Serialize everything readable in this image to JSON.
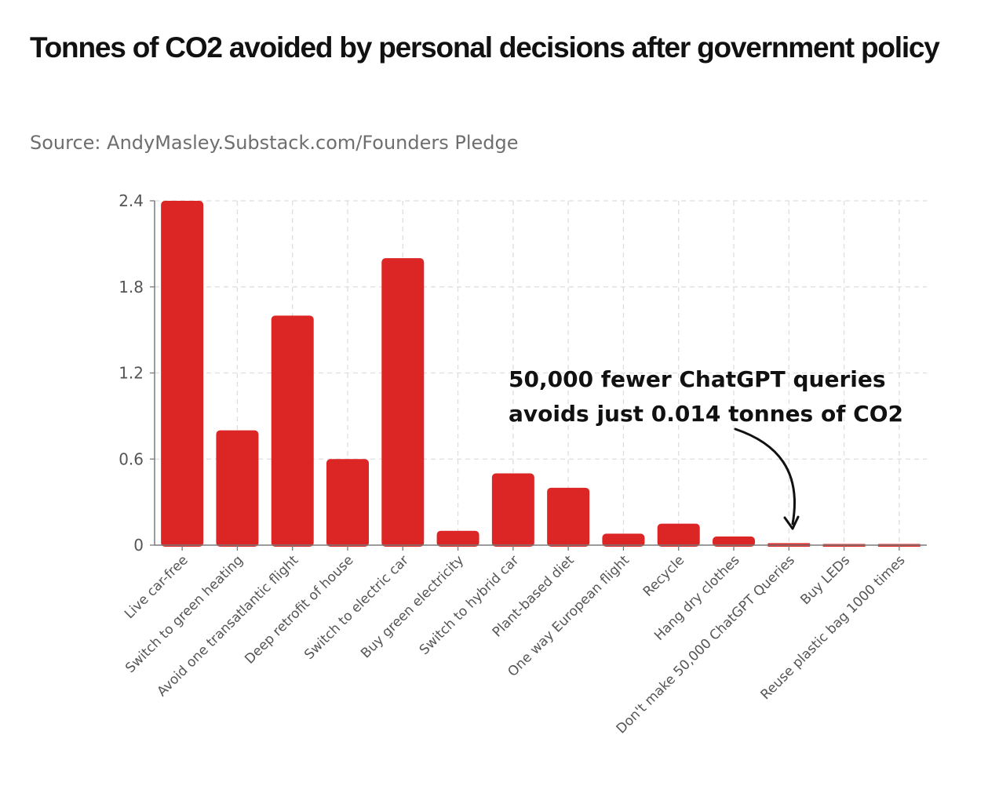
{
  "title": "Tonnes of CO2 avoided by personal decisions after government policy",
  "subtitle": "Source: AndyMasley.Substack.com/Founders Pledge",
  "colors": {
    "bar": "#dc2626",
    "grid": "#dedede",
    "axis": "#7a7a7a",
    "text": "#555555"
  },
  "chart_data": {
    "type": "bar",
    "title": "Tonnes of CO2 avoided by personal decisions after government policy",
    "xlabel": "",
    "ylabel": "",
    "ylim": [
      0,
      2.4
    ],
    "yticks": [
      "0",
      "0.6",
      "1.2",
      "1.8",
      "2.4"
    ],
    "grid": true,
    "categories": [
      "Live car-free",
      "Switch to green heating",
      "Avoid one transatlantic flight",
      "Deep retrofit of house",
      "Switch to electric car",
      "Buy green electricity",
      "Switch to hybrid car",
      "Plant-based diet",
      "One way European flight",
      "Recycle",
      "Hang dry clothes",
      "Don't make 50,000 ChatGPT Queries",
      "Buy LEDs",
      "Reuse plastic bag 1000 times"
    ],
    "values": [
      2.4,
      0.8,
      1.6,
      0.6,
      2.0,
      0.1,
      0.5,
      0.4,
      0.08,
      0.15,
      0.06,
      0.014,
      0.008,
      0.006
    ],
    "annotation": {
      "lines": [
        "50,000 fewer ChatGPT queries",
        "avoids just 0.014 tonnes of CO2"
      ],
      "target_category": "Don't make 50,000 ChatGPT Queries"
    }
  }
}
